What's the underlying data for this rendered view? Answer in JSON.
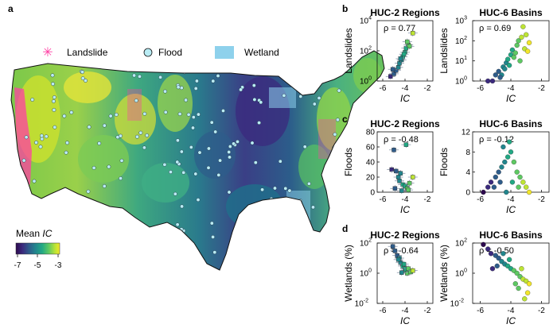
{
  "panel_letters": [
    "a",
    "b",
    "c",
    "d"
  ],
  "map": {
    "legend": {
      "landslide": "Landslide",
      "flood": "Flood",
      "wetland": "Wetland"
    },
    "colorbar": {
      "title": "Mean ",
      "title_italic": "IC",
      "ticks": [
        "-7",
        "-5",
        "-3"
      ]
    }
  },
  "colors": {
    "landslide": "#ff3fa4",
    "flood": "#b9ecf4",
    "wetland": "#8ed1ec",
    "viridis": [
      "#2d0a4e",
      "#3b2a7d",
      "#2e5c8a",
      "#22868d",
      "#22a884",
      "#5ec962",
      "#bde434",
      "#f2e62a"
    ]
  },
  "chart_data": [
    {
      "type": "scatter",
      "title": "HUC-2 Regions",
      "xlabel": "IC",
      "ylabel": "Landslides",
      "yscale": "log",
      "ylim": [
        1,
        10000
      ],
      "yticks": [
        "10^0",
        "10^2",
        "10^4"
      ],
      "xlim": [
        -6.5,
        -1.5
      ],
      "xticks": [
        "-6",
        "-4",
        "-2"
      ],
      "annotation": "ρ = 0.77",
      "points": [
        {
          "x": -5.3,
          "y": 2
        },
        {
          "x": -5.0,
          "y": 3
        },
        {
          "x": -4.8,
          "y": 5
        },
        {
          "x": -4.6,
          "y": 8
        },
        {
          "x": -4.5,
          "y": 15
        },
        {
          "x": -4.3,
          "y": 25
        },
        {
          "x": -4.2,
          "y": 40
        },
        {
          "x": -4.0,
          "y": 80
        },
        {
          "x": -4.1,
          "y": 60
        },
        {
          "x": -3.9,
          "y": 150
        },
        {
          "x": -3.7,
          "y": 250
        },
        {
          "x": -3.6,
          "y": 200
        },
        {
          "x": -4.4,
          "y": 30
        },
        {
          "x": -3.8,
          "y": 400
        },
        {
          "x": -3.3,
          "y": 1500
        },
        {
          "x": -5.1,
          "y": 6
        }
      ]
    },
    {
      "type": "scatter",
      "title": "HUC-6 Basins",
      "xlabel": "IC",
      "ylabel": "Landslides",
      "yscale": "log",
      "ylim": [
        1,
        1000
      ],
      "yticks": [
        "10^0",
        "10^1",
        "10^2",
        "10^3"
      ],
      "xlim": [
        -6.5,
        -1.5
      ],
      "xticks": [
        "-6",
        "-4",
        "-2"
      ],
      "annotation": "ρ = 0.69",
      "points": [
        {
          "x": -5.5,
          "y": 1
        },
        {
          "x": -5.2,
          "y": 1
        },
        {
          "x": -5.0,
          "y": 2
        },
        {
          "x": -4.8,
          "y": 3
        },
        {
          "x": -4.6,
          "y": 2
        },
        {
          "x": -4.5,
          "y": 5
        },
        {
          "x": -4.3,
          "y": 8
        },
        {
          "x": -4.2,
          "y": 12
        },
        {
          "x": -4.0,
          "y": 20
        },
        {
          "x": -3.9,
          "y": 35
        },
        {
          "x": -3.8,
          "y": 15
        },
        {
          "x": -3.6,
          "y": 60
        },
        {
          "x": -3.5,
          "y": 100
        },
        {
          "x": -3.3,
          "y": 150
        },
        {
          "x": -3.1,
          "y": 40
        },
        {
          "x": -3.0,
          "y": 200
        },
        {
          "x": -2.8,
          "y": 80
        },
        {
          "x": -4.4,
          "y": 4
        },
        {
          "x": -3.7,
          "y": 25
        },
        {
          "x": -3.4,
          "y": 10
        },
        {
          "x": -4.1,
          "y": 6
        },
        {
          "x": -4.7,
          "y": 1.5
        },
        {
          "x": -3.2,
          "y": 500
        },
        {
          "x": -2.9,
          "y": 30
        }
      ]
    },
    {
      "type": "scatter",
      "title": "HUC-2 Regions",
      "xlabel": "IC",
      "ylabel": "Floods",
      "ylim": [
        0,
        80
      ],
      "yticks": [
        "0",
        "20",
        "40",
        "60",
        "80"
      ],
      "xlim": [
        -6.5,
        -1.5
      ],
      "xticks": [
        "-6",
        "-4",
        "-2"
      ],
      "annotation": "ρ = -0.48",
      "points": [
        {
          "x": -5.0,
          "y": 56
        },
        {
          "x": -3.9,
          "y": 63
        },
        {
          "x": -5.2,
          "y": 30
        },
        {
          "x": -4.8,
          "y": 28
        },
        {
          "x": -4.6,
          "y": 20
        },
        {
          "x": -4.4,
          "y": 25
        },
        {
          "x": -4.2,
          "y": 10
        },
        {
          "x": -4.0,
          "y": 8
        },
        {
          "x": -3.8,
          "y": 5
        },
        {
          "x": -4.5,
          "y": 15
        },
        {
          "x": -3.6,
          "y": 12
        },
        {
          "x": -3.3,
          "y": 20
        },
        {
          "x": -4.9,
          "y": 5
        },
        {
          "x": -4.3,
          "y": 2
        },
        {
          "x": -3.7,
          "y": 3
        }
      ]
    },
    {
      "type": "scatter",
      "title": "HUC-6 Basins",
      "xlabel": "IC",
      "ylabel": "Floods",
      "ylim": [
        0,
        12
      ],
      "yticks": [
        "0",
        "4",
        "8",
        "12"
      ],
      "xlim": [
        -6.5,
        -1.5
      ],
      "xticks": [
        "-6",
        "-4",
        "-2"
      ],
      "annotation": "ρ = -0.12",
      "points": [
        {
          "x": -5.8,
          "y": 0
        },
        {
          "x": -5.5,
          "y": 1
        },
        {
          "x": -5.3,
          "y": 2
        },
        {
          "x": -5.0,
          "y": 3
        },
        {
          "x": -4.8,
          "y": 4
        },
        {
          "x": -4.6,
          "y": 5
        },
        {
          "x": -4.4,
          "y": 6
        },
        {
          "x": -4.2,
          "y": 7
        },
        {
          "x": -4.0,
          "y": 8
        },
        {
          "x": -3.8,
          "y": 6
        },
        {
          "x": -3.6,
          "y": 4
        },
        {
          "x": -3.4,
          "y": 3
        },
        {
          "x": -3.2,
          "y": 2
        },
        {
          "x": -3.0,
          "y": 1
        },
        {
          "x": -2.8,
          "y": 0
        },
        {
          "x": -4.5,
          "y": 9
        },
        {
          "x": -4.1,
          "y": 10
        },
        {
          "x": -5.1,
          "y": 1
        },
        {
          "x": -3.9,
          "y": 2
        },
        {
          "x": -4.3,
          "y": 0
        },
        {
          "x": -3.5,
          "y": 1
        },
        {
          "x": -4.7,
          "y": 2
        }
      ]
    },
    {
      "type": "scatter",
      "title": "HUC-2 Regions",
      "xlabel": "IC",
      "ylabel": "Wetlands (%)",
      "yscale": "log",
      "ylim": [
        0.01,
        100
      ],
      "yticks": [
        "10^-2",
        "10^0",
        "10^2"
      ],
      "xlim": [
        -6.5,
        -1.5
      ],
      "xticks": [
        "-6",
        "-4",
        "-2"
      ],
      "annotation": "ρ = -0.64",
      "points": [
        {
          "x": -5.1,
          "y": 60
        },
        {
          "x": -4.9,
          "y": 30
        },
        {
          "x": -4.7,
          "y": 15
        },
        {
          "x": -4.5,
          "y": 10
        },
        {
          "x": -4.4,
          "y": 5
        },
        {
          "x": -4.2,
          "y": 3
        },
        {
          "x": -4.0,
          "y": 2
        },
        {
          "x": -3.9,
          "y": 1.5
        },
        {
          "x": -3.8,
          "y": 1
        },
        {
          "x": -4.6,
          "y": 8
        },
        {
          "x": -4.1,
          "y": 4
        },
        {
          "x": -3.7,
          "y": 2
        },
        {
          "x": -3.5,
          "y": 1.2
        },
        {
          "x": -3.3,
          "y": 1.5
        },
        {
          "x": -4.3,
          "y": 1.1
        }
      ]
    },
    {
      "type": "scatter",
      "title": "HUC-6 Basins",
      "xlabel": "IC",
      "ylabel": "Wetlands (%)",
      "yscale": "log",
      "ylim": [
        0.01,
        100
      ],
      "yticks": [
        "10^-2",
        "10^0",
        "10^2"
      ],
      "xlim": [
        -6.5,
        -1.5
      ],
      "xticks": [
        "-6",
        "-4",
        "-2"
      ],
      "annotation": "ρ = -0.50",
      "points": [
        {
          "x": -5.8,
          "y": 80
        },
        {
          "x": -5.5,
          "y": 40
        },
        {
          "x": -5.3,
          "y": 20
        },
        {
          "x": -5.0,
          "y": 15
        },
        {
          "x": -4.8,
          "y": 10
        },
        {
          "x": -4.6,
          "y": 6
        },
        {
          "x": -4.4,
          "y": 4
        },
        {
          "x": -4.2,
          "y": 3
        },
        {
          "x": -4.0,
          "y": 2
        },
        {
          "x": -3.8,
          "y": 1.5
        },
        {
          "x": -3.6,
          "y": 1
        },
        {
          "x": -3.4,
          "y": 0.6
        },
        {
          "x": -3.2,
          "y": 0.4
        },
        {
          "x": -3.0,
          "y": 0.3
        },
        {
          "x": -2.8,
          "y": 0.2
        },
        {
          "x": -4.9,
          "y": 3
        },
        {
          "x": -4.5,
          "y": 20
        },
        {
          "x": -4.1,
          "y": 8
        },
        {
          "x": -3.7,
          "y": 0.2
        },
        {
          "x": -3.3,
          "y": 2
        },
        {
          "x": -5.2,
          "y": 2
        },
        {
          "x": -3.5,
          "y": 0.1
        },
        {
          "x": -2.9,
          "y": 0.05
        },
        {
          "x": -3.1,
          "y": 0.02
        }
      ]
    }
  ]
}
